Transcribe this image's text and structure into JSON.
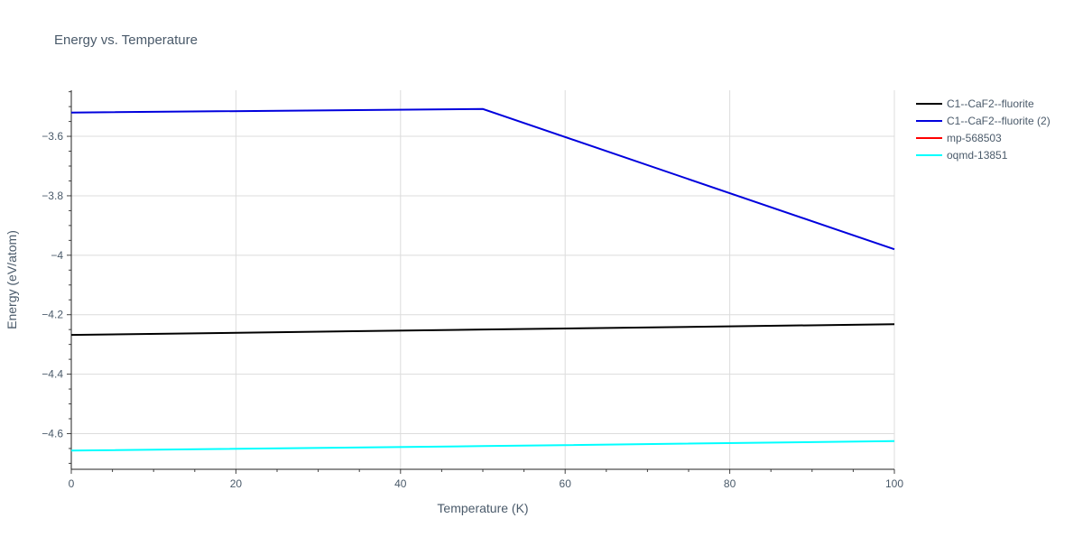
{
  "chart_data": {
    "type": "line",
    "title": "Energy vs. Temperature",
    "xlabel": "Temperature (K)",
    "ylabel": "Energy (eV/atom)",
    "xlim": [
      0,
      100
    ],
    "ylim": [
      -4.72,
      -3.445
    ],
    "xticks": [
      0,
      20,
      40,
      60,
      80,
      100
    ],
    "xtick_labels": [
      "0",
      "20",
      "40",
      "60",
      "80",
      "100"
    ],
    "yticks": [
      -3.6,
      -3.8,
      -4.0,
      -4.2,
      -4.4,
      -4.6
    ],
    "ytick_labels": [
      "−3.6",
      "−3.8",
      "−4",
      "−4.2",
      "−4.4",
      "−4.6"
    ],
    "grid": true,
    "legend_position": "top-right",
    "series": [
      {
        "name": "C1--CaF2--fluorite",
        "color": "#000000",
        "x": [
          0,
          50,
          100
        ],
        "y": [
          -4.268,
          -4.25,
          -4.232
        ]
      },
      {
        "name": "C1--CaF2--fluorite (2)",
        "color": "#0000dd",
        "x": [
          0,
          50,
          100
        ],
        "y": [
          -3.52,
          -3.508,
          -3.98
        ]
      },
      {
        "name": "mp-568503",
        "color": "#ff0000",
        "x": [],
        "y": []
      },
      {
        "name": "oqmd-13851",
        "color": "#00ffff",
        "x": [
          0,
          50,
          100
        ],
        "y": [
          -4.657,
          -4.642,
          -4.625
        ]
      }
    ]
  }
}
